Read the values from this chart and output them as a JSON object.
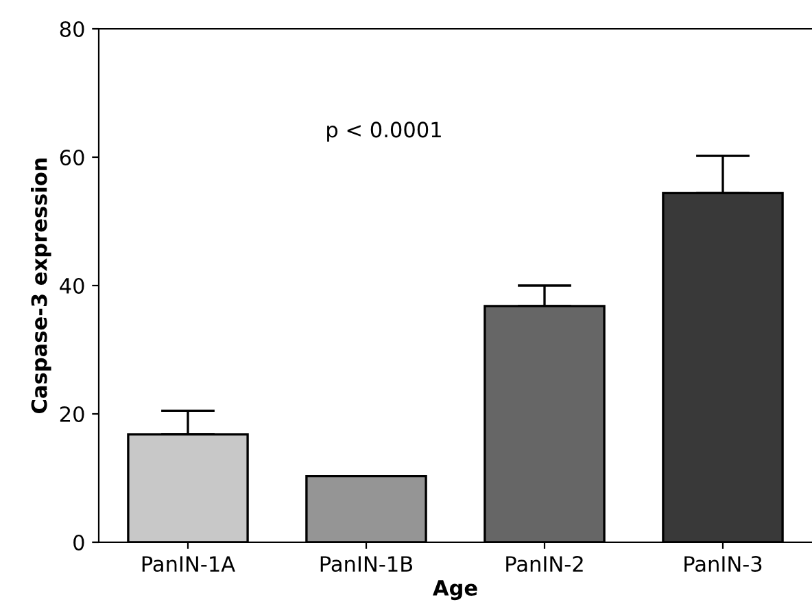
{
  "chart_data": {
    "type": "bar",
    "xlabel": "Age",
    "ylabel": "Caspase-3 expression",
    "categories": [
      "PanIN-1A",
      "PanIN-1B",
      "PanIN-2",
      "PanIN-3"
    ],
    "values": [
      16.8,
      10.3,
      36.8,
      54.4
    ],
    "colors": [
      "#c8c8c8",
      "#959595",
      "#666666",
      "#393939"
    ],
    "errors": [
      [
        16.8,
        20.5
      ],
      null,
      [
        36.8,
        40.0
      ],
      [
        54.4,
        60.2
      ]
    ],
    "ylim": [
      0,
      80
    ],
    "yticks": [
      0,
      20,
      40,
      60,
      80
    ],
    "grid": false,
    "annotations": [
      "p < 0.0001"
    ]
  }
}
